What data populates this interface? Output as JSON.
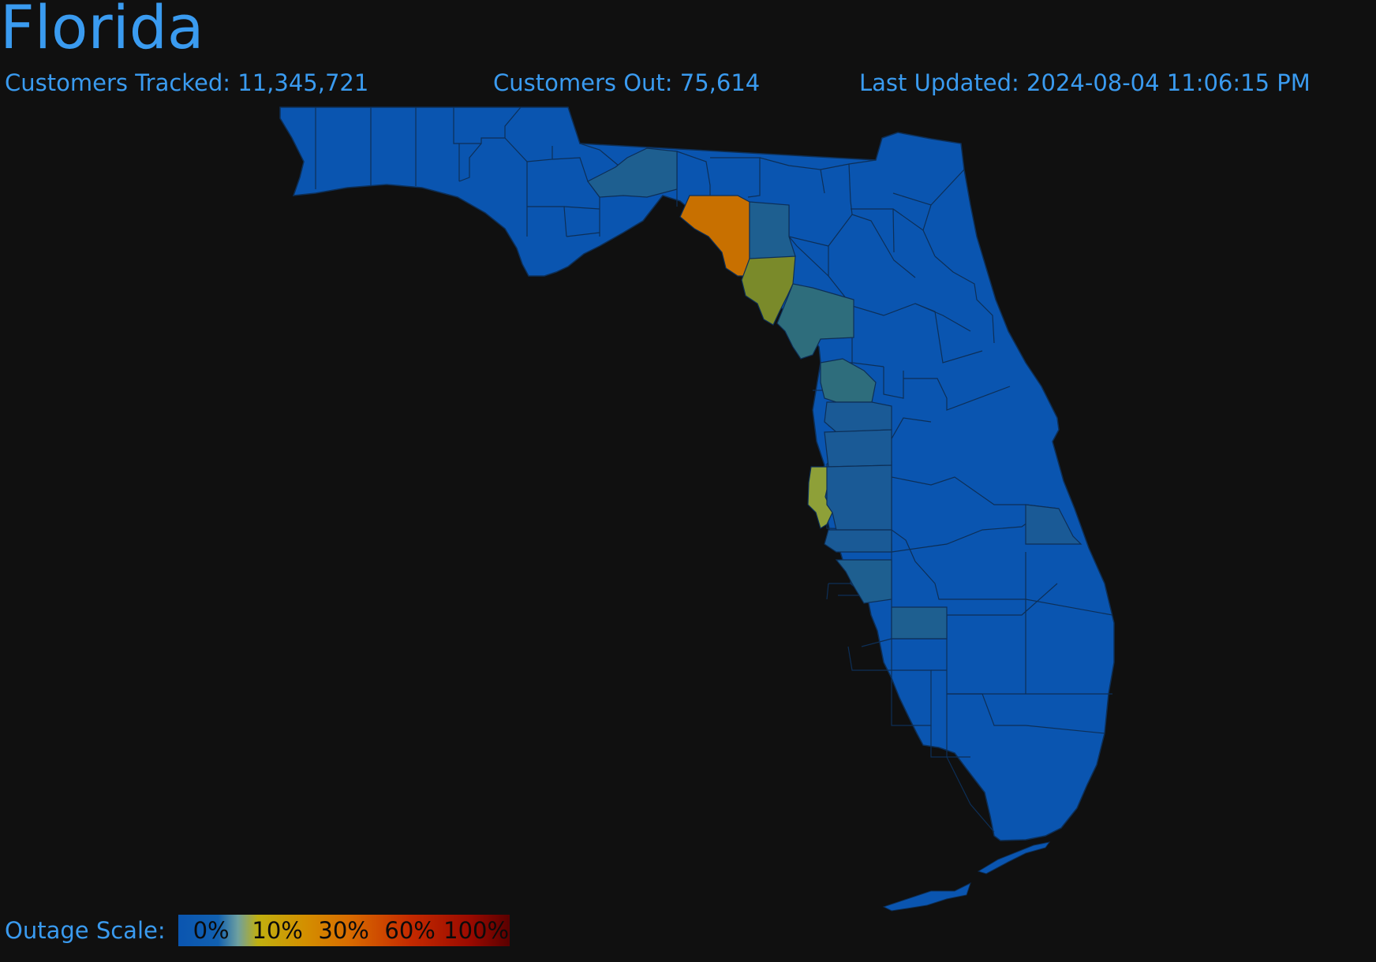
{
  "title": "Florida",
  "stats": {
    "tracked": "Customers Tracked: 11,345,721",
    "out": "Customers Out: 75,614",
    "updated": "Last Updated: 2024-08-04 11:06:15 PM"
  },
  "legend": {
    "label": "Outage Scale:",
    "ticks": [
      "0%",
      "10%",
      "30%",
      "60%",
      "100%"
    ]
  },
  "colors": {
    "text": "#3a9bf0",
    "background": "#101010",
    "county_default": "#0a55b0",
    "county_teal": "#2d6e80",
    "county_orange": "#c86e00",
    "county_olive": "#7a8a2a",
    "county_yellow_green": "#8ea038"
  }
}
